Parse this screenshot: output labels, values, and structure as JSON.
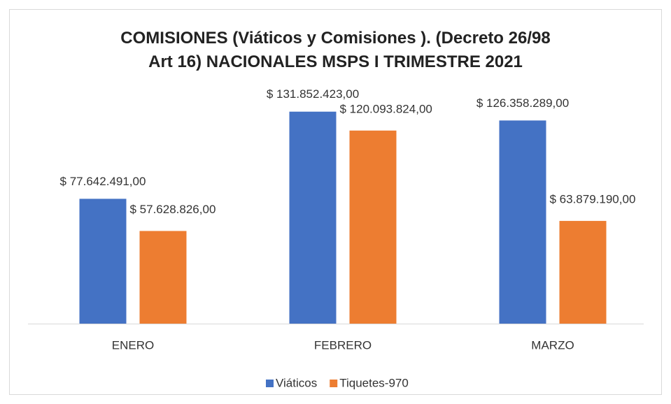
{
  "chart_data": {
    "type": "bar",
    "title": "COMISIONES (Viáticos y Comisiones ). (Decreto 26/98\nArt 16) NACIONALES  MSPS I TRIMESTRE 2021",
    "categories": [
      "ENERO",
      "FEBRERO",
      "MARZO"
    ],
    "series": [
      {
        "name": "Viáticos",
        "color": "#4472c4",
        "values": [
          77642491,
          131852423,
          126358289
        ],
        "value_labels": [
          "$ 77.642.491,00",
          "$ 131.852.423,00",
          "$ 126.358.289,00"
        ]
      },
      {
        "name": "Tiquetes-970",
        "color": "#ed7d31",
        "values": [
          57628826,
          120093824,
          63879190
        ],
        "value_labels": [
          "$ 57.628.826,00",
          "$ 120.093.824,00",
          "$ 63.879.190,00"
        ]
      }
    ],
    "ylim": [
      0,
      140000000
    ]
  }
}
